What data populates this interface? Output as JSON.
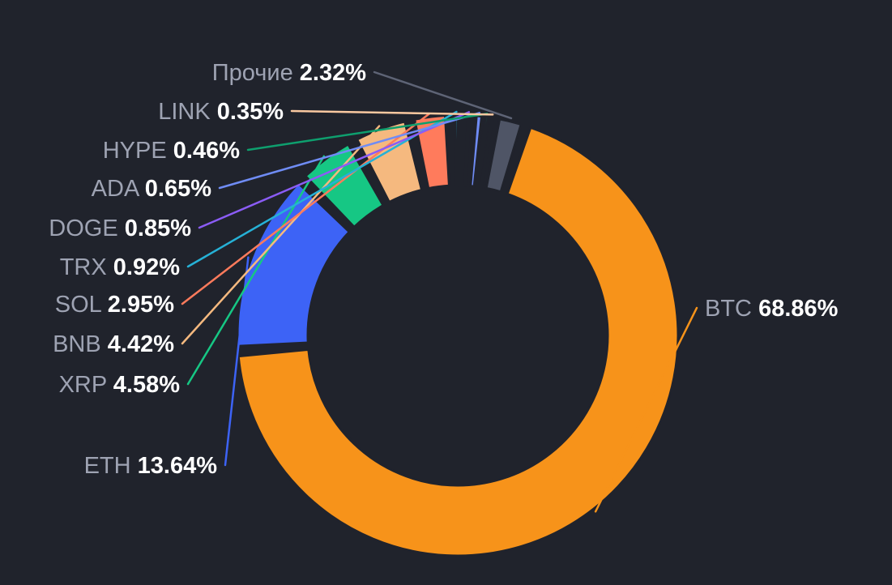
{
  "chart_data": {
    "type": "pie",
    "variant": "donut",
    "title": "",
    "legend": "none",
    "categories": [
      "BTC",
      "ETH",
      "XRP",
      "BNB",
      "SOL",
      "TRX",
      "DOGE",
      "ADA",
      "HYPE",
      "LINK",
      "Прочие"
    ],
    "values": [
      68.86,
      13.64,
      4.58,
      4.42,
      2.95,
      0.92,
      0.85,
      0.65,
      0.46,
      0.35,
      2.32
    ],
    "value_labels": [
      "68.86%",
      "13.64%",
      "4.58%",
      "4.42%",
      "2.95%",
      "0.92%",
      "0.85%",
      "0.65%",
      "0.46%",
      "0.35%",
      "2.32%"
    ],
    "colors": [
      "#f7931a",
      "#3d63f6",
      "#16c784",
      "#f5b97f",
      "#ff7b5c",
      "#26b1d6",
      "#8b5cf6",
      "#6f8cf5",
      "#0e9f6e",
      "#f9c8a0",
      "#4f5566"
    ]
  }
}
